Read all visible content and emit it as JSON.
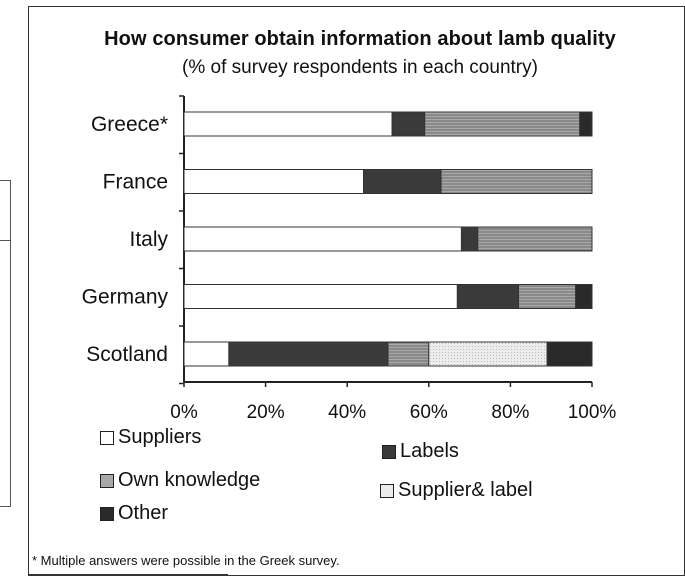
{
  "title": "How consumer obtain information about lamb quality",
  "subtitle": "(% of survey respondents in each country)",
  "footnote": "* Multiple answers were possible in the Greek survey.",
  "colors": {
    "suppliers": "#ffffff",
    "labels": "#3a3a3a",
    "own_knowledge": "#a8a8a8",
    "supplier_label": "#ececec",
    "other": "#2a2a2a"
  },
  "chart_data": {
    "type": "bar",
    "orientation": "horizontal",
    "stacked": true,
    "categories": [
      "Greece*",
      "France",
      "Italy",
      "Germany",
      "Scotland"
    ],
    "series": [
      {
        "name": "Suppliers",
        "values": [
          51,
          44,
          68,
          67,
          11
        ]
      },
      {
        "name": "Labels",
        "values": [
          8,
          19,
          4,
          15,
          39
        ]
      },
      {
        "name": "Own knowledge",
        "values": [
          38,
          37,
          28,
          14,
          10
        ]
      },
      {
        "name": "Supplier& label",
        "values": [
          0,
          0,
          0,
          0,
          29
        ]
      },
      {
        "name": "Other",
        "values": [
          3,
          0,
          0,
          4,
          11
        ]
      }
    ],
    "xlim": [
      0,
      100
    ],
    "xticks": [
      "0%",
      "20%",
      "40%",
      "60%",
      "80%",
      "100%"
    ],
    "grid": false,
    "legend_position": "bottom"
  }
}
